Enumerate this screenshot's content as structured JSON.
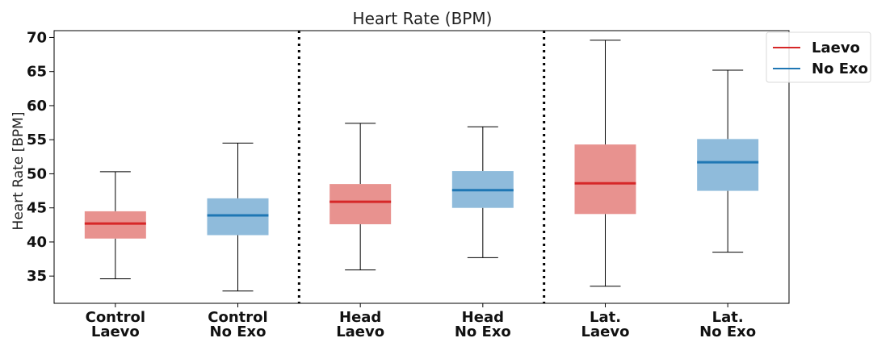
{
  "chart_data": {
    "type": "box",
    "title": "Heart Rate (BPM)",
    "ylabel": "Heart Rate [BPM]",
    "xlabel": "",
    "ylim": [
      31,
      71
    ],
    "yticks": [
      35,
      40,
      45,
      50,
      55,
      60,
      65,
      70
    ],
    "grid": false,
    "legend_position": "top-right",
    "colors": {
      "Laevo": {
        "line": "#d62728",
        "fill": "#e8928f"
      },
      "No Exo": {
        "line": "#1f77b4",
        "fill": "#8fbbdb"
      }
    },
    "legend": [
      {
        "name": "Laevo",
        "color": "#d62728"
      },
      {
        "name": "No Exo",
        "color": "#1f77b4"
      }
    ],
    "categories": [
      {
        "line1": "Control",
        "line2": "Laevo"
      },
      {
        "line1": "Control",
        "line2": "No Exo"
      },
      {
        "line1": "Head",
        "line2": "Laevo"
      },
      {
        "line1": "Head",
        "line2": "No Exo"
      },
      {
        "line1": "Lat.",
        "line2": "Laevo"
      },
      {
        "line1": "Lat.",
        "line2": "No Exo"
      }
    ],
    "boxes": [
      {
        "series": "Laevo",
        "min": 34.6,
        "q1": 40.5,
        "median": 42.7,
        "q3": 44.5,
        "max": 50.3
      },
      {
        "series": "No Exo",
        "min": 32.8,
        "q1": 41.0,
        "median": 43.9,
        "q3": 46.4,
        "max": 54.5
      },
      {
        "series": "Laevo",
        "min": 35.9,
        "q1": 42.6,
        "median": 45.9,
        "q3": 48.5,
        "max": 57.4
      },
      {
        "series": "No Exo",
        "min": 37.7,
        "q1": 45.0,
        "median": 47.6,
        "q3": 50.4,
        "max": 56.9
      },
      {
        "series": "Laevo",
        "min": 33.5,
        "q1": 44.1,
        "median": 48.6,
        "q3": 54.3,
        "max": 69.6
      },
      {
        "series": "No Exo",
        "min": 38.5,
        "q1": 47.5,
        "median": 51.7,
        "q3": 55.1,
        "max": 65.2
      }
    ],
    "separators_after_category": [
      2,
      4
    ]
  }
}
